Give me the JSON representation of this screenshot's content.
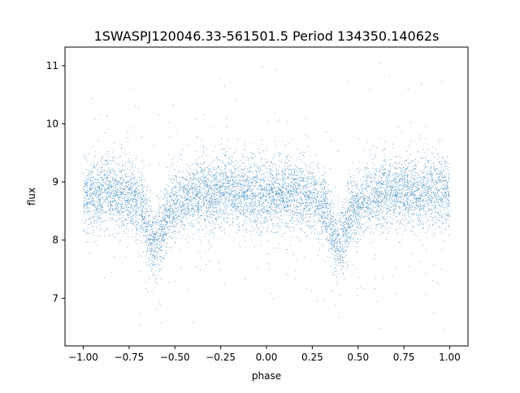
{
  "chart_data": {
    "type": "scatter",
    "title": "1SWASPJ120046.33-561501.5 Period 134350.14062s",
    "xlabel": "phase",
    "ylabel": "flux",
    "xlim": [
      -1.1,
      1.1
    ],
    "ylim": [
      6.18,
      11.32
    ],
    "x_ticks": [
      -1.0,
      -0.75,
      -0.5,
      -0.25,
      0.0,
      0.25,
      0.5,
      0.75,
      1.0
    ],
    "x_tick_labels": [
      "−1.00",
      "−0.75",
      "−0.50",
      "−0.25",
      "0.00",
      "0.25",
      "0.50",
      "0.75",
      "1.00"
    ],
    "y_ticks": [
      7,
      8,
      9,
      10,
      11
    ],
    "y_tick_labels": [
      "7",
      "8",
      "9",
      "10",
      "11"
    ],
    "grid": false,
    "legend": "none",
    "series": [
      {
        "color": "#1f77b4",
        "marker": "point",
        "profile": {
          "phase": [
            -1.0,
            -0.85,
            -0.75,
            -0.68,
            -0.62,
            -0.58,
            -0.54,
            -0.45,
            -0.25,
            0.0,
            0.1,
            0.25,
            0.32,
            0.38,
            0.42,
            0.46,
            0.55,
            0.75,
            1.0
          ],
          "flux": [
            8.78,
            8.82,
            8.72,
            8.55,
            7.95,
            8.05,
            8.45,
            8.72,
            8.85,
            8.78,
            8.82,
            8.72,
            8.55,
            7.95,
            8.05,
            8.45,
            8.72,
            8.85,
            8.78
          ]
        },
        "scatter_sigma": 0.3,
        "n_points": 9000
      }
    ]
  }
}
